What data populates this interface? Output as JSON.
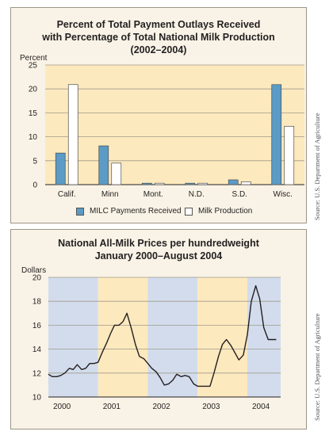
{
  "chart_data": [
    {
      "type": "bar",
      "title": [
        "Percent of Total Payment Outlays Received",
        "with Percentage of Total National Milk Production",
        "(2002–2004)"
      ],
      "ylabel": "Percent",
      "ylim": [
        0,
        25
      ],
      "yticks": [
        "0",
        "5",
        "10",
        "15",
        "20",
        "25"
      ],
      "categories": [
        "Calif.",
        "Minn",
        "Mont.",
        "N.D.",
        "S.D.",
        "Wisc."
      ],
      "series": [
        {
          "name": "MILC Payments Received",
          "color": "#5b9bc6",
          "values": [
            6.6,
            8.1,
            0.3,
            0.3,
            1.0,
            20.9
          ]
        },
        {
          "name": "Milk Production",
          "color": "#ffffff",
          "values": [
            20.9,
            4.5,
            0.3,
            0.3,
            0.6,
            12.2
          ]
        }
      ],
      "grid": true,
      "legend_position": "bottom",
      "plot_background": "#fde9be",
      "source": "Source: U.S. Department of Agriculture"
    },
    {
      "type": "line",
      "title": [
        "National All-Milk Prices per hundredweight",
        "January 2000–August 2004"
      ],
      "ylabel": "Dollars",
      "ylim": [
        10,
        20
      ],
      "yticks": [
        "10",
        "12",
        "14",
        "16",
        "18",
        "20"
      ],
      "xlim": [
        2000.0,
        2004.67
      ],
      "xticks": [
        {
          "label": "2000",
          "x": 2000.0
        },
        {
          "label": "2001",
          "x": 2001.0
        },
        {
          "label": "2002",
          "x": 2002.0
        },
        {
          "label": "2003",
          "x": 2003.0
        },
        {
          "label": "2004",
          "x": 2004.0
        }
      ],
      "year_bands": [
        {
          "from": 2000.0,
          "to": 2001.0,
          "color": "#d2dced"
        },
        {
          "from": 2001.0,
          "to": 2002.0,
          "color": "#fde9be"
        },
        {
          "from": 2002.0,
          "to": 2003.0,
          "color": "#d2dced"
        },
        {
          "from": 2003.0,
          "to": 2004.0,
          "color": "#fde9be"
        },
        {
          "from": 2004.0,
          "to": 2004.67,
          "color": "#d2dced"
        }
      ],
      "series": [
        {
          "name": "",
          "color": "#231f20",
          "x": [
            2000.0,
            2000.08,
            2000.17,
            2000.25,
            2000.33,
            2000.42,
            2000.5,
            2000.58,
            2000.67,
            2000.75,
            2000.83,
            2000.92,
            2001.0,
            2001.08,
            2001.17,
            2001.25,
            2001.33,
            2001.42,
            2001.5,
            2001.58,
            2001.67,
            2001.75,
            2001.83,
            2001.92,
            2002.0,
            2002.08,
            2002.17,
            2002.25,
            2002.33,
            2002.42,
            2002.5,
            2002.58,
            2002.67,
            2002.75,
            2002.83,
            2002.92,
            2003.0,
            2003.08,
            2003.17,
            2003.25,
            2003.33,
            2003.42,
            2003.5,
            2003.58,
            2003.67,
            2003.75,
            2003.83,
            2003.92,
            2004.0,
            2004.08,
            2004.17,
            2004.25,
            2004.33,
            2004.42,
            2004.5,
            2004.58
          ],
          "y": [
            11.9,
            11.7,
            11.7,
            11.8,
            12.0,
            12.4,
            12.3,
            12.7,
            12.3,
            12.4,
            12.8,
            12.8,
            12.9,
            13.7,
            14.5,
            15.3,
            16.0,
            16.0,
            16.3,
            17.0,
            15.7,
            14.4,
            13.4,
            13.2,
            12.8,
            12.4,
            12.1,
            11.6,
            11.0,
            11.1,
            11.4,
            11.9,
            11.7,
            11.8,
            11.7,
            11.1,
            10.9,
            10.9,
            10.9,
            10.9,
            12.0,
            13.4,
            14.4,
            14.8,
            14.3,
            13.7,
            13.1,
            13.5,
            15.2,
            18.0,
            19.3,
            18.2,
            15.8,
            14.8,
            14.8,
            14.8
          ]
        }
      ],
      "grid": true,
      "source": "Source: U.S. Department of Agriculture"
    }
  ]
}
